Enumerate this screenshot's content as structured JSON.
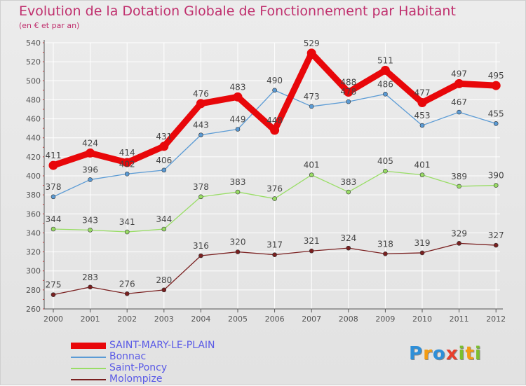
{
  "title": "Evolution de la Dotation Globale de Fonctionnement par Habitant",
  "subtitle": "(en € et par an)",
  "logo": {
    "letters": [
      "P",
      "r",
      "o",
      "x",
      "i",
      "t",
      "i"
    ],
    "colors": [
      "#2e8fd8",
      "#f39c12",
      "#2e8fd8",
      "#e8402c",
      "#7cbf2f",
      "#f39c12",
      "#7cbf2f"
    ]
  },
  "colors": {
    "title": "#c0306e",
    "legend_text": "#5a5ae6",
    "axis": "#555555",
    "grid": "#ffffff",
    "label": "#444444"
  },
  "chart_data": {
    "type": "line",
    "title": "Evolution de la Dotation Globale de Fonctionnement par Habitant",
    "subtitle": "(en € et par an)",
    "xlabel": "",
    "ylabel": "",
    "ylim": [
      260,
      540
    ],
    "yticks": [
      260,
      280,
      300,
      320,
      340,
      360,
      380,
      400,
      420,
      440,
      460,
      480,
      500,
      520,
      540
    ],
    "categories": [
      "2000",
      "2001",
      "2002",
      "2003",
      "2004",
      "2005",
      "2006",
      "2007",
      "2008",
      "2009",
      "2010",
      "2011",
      "2012"
    ],
    "grid": true,
    "legend_position": "bottom-left",
    "series": [
      {
        "name": "SAINT-MARY-LE-PLAIN",
        "color": "#e8070a",
        "width": "thick",
        "values": [
          411,
          424,
          414,
          431,
          476,
          483,
          448,
          529,
          488,
          511,
          477,
          497,
          495
        ]
      },
      {
        "name": "Bonnac",
        "color": "#5b9bd5",
        "width": "thin",
        "values": [
          378,
          396,
          402,
          406,
          443,
          449,
          490,
          473,
          478,
          486,
          453,
          467,
          455
        ]
      },
      {
        "name": "Saint-Poncy",
        "color": "#99dd66",
        "width": "thin",
        "values": [
          344,
          343,
          341,
          344,
          378,
          383,
          376,
          401,
          383,
          405,
          401,
          389,
          390
        ]
      },
      {
        "name": "Molompize",
        "color": "#7a2020",
        "width": "thin",
        "values": [
          275,
          283,
          276,
          280,
          316,
          320,
          317,
          321,
          324,
          318,
          319,
          329,
          327
        ]
      }
    ]
  }
}
